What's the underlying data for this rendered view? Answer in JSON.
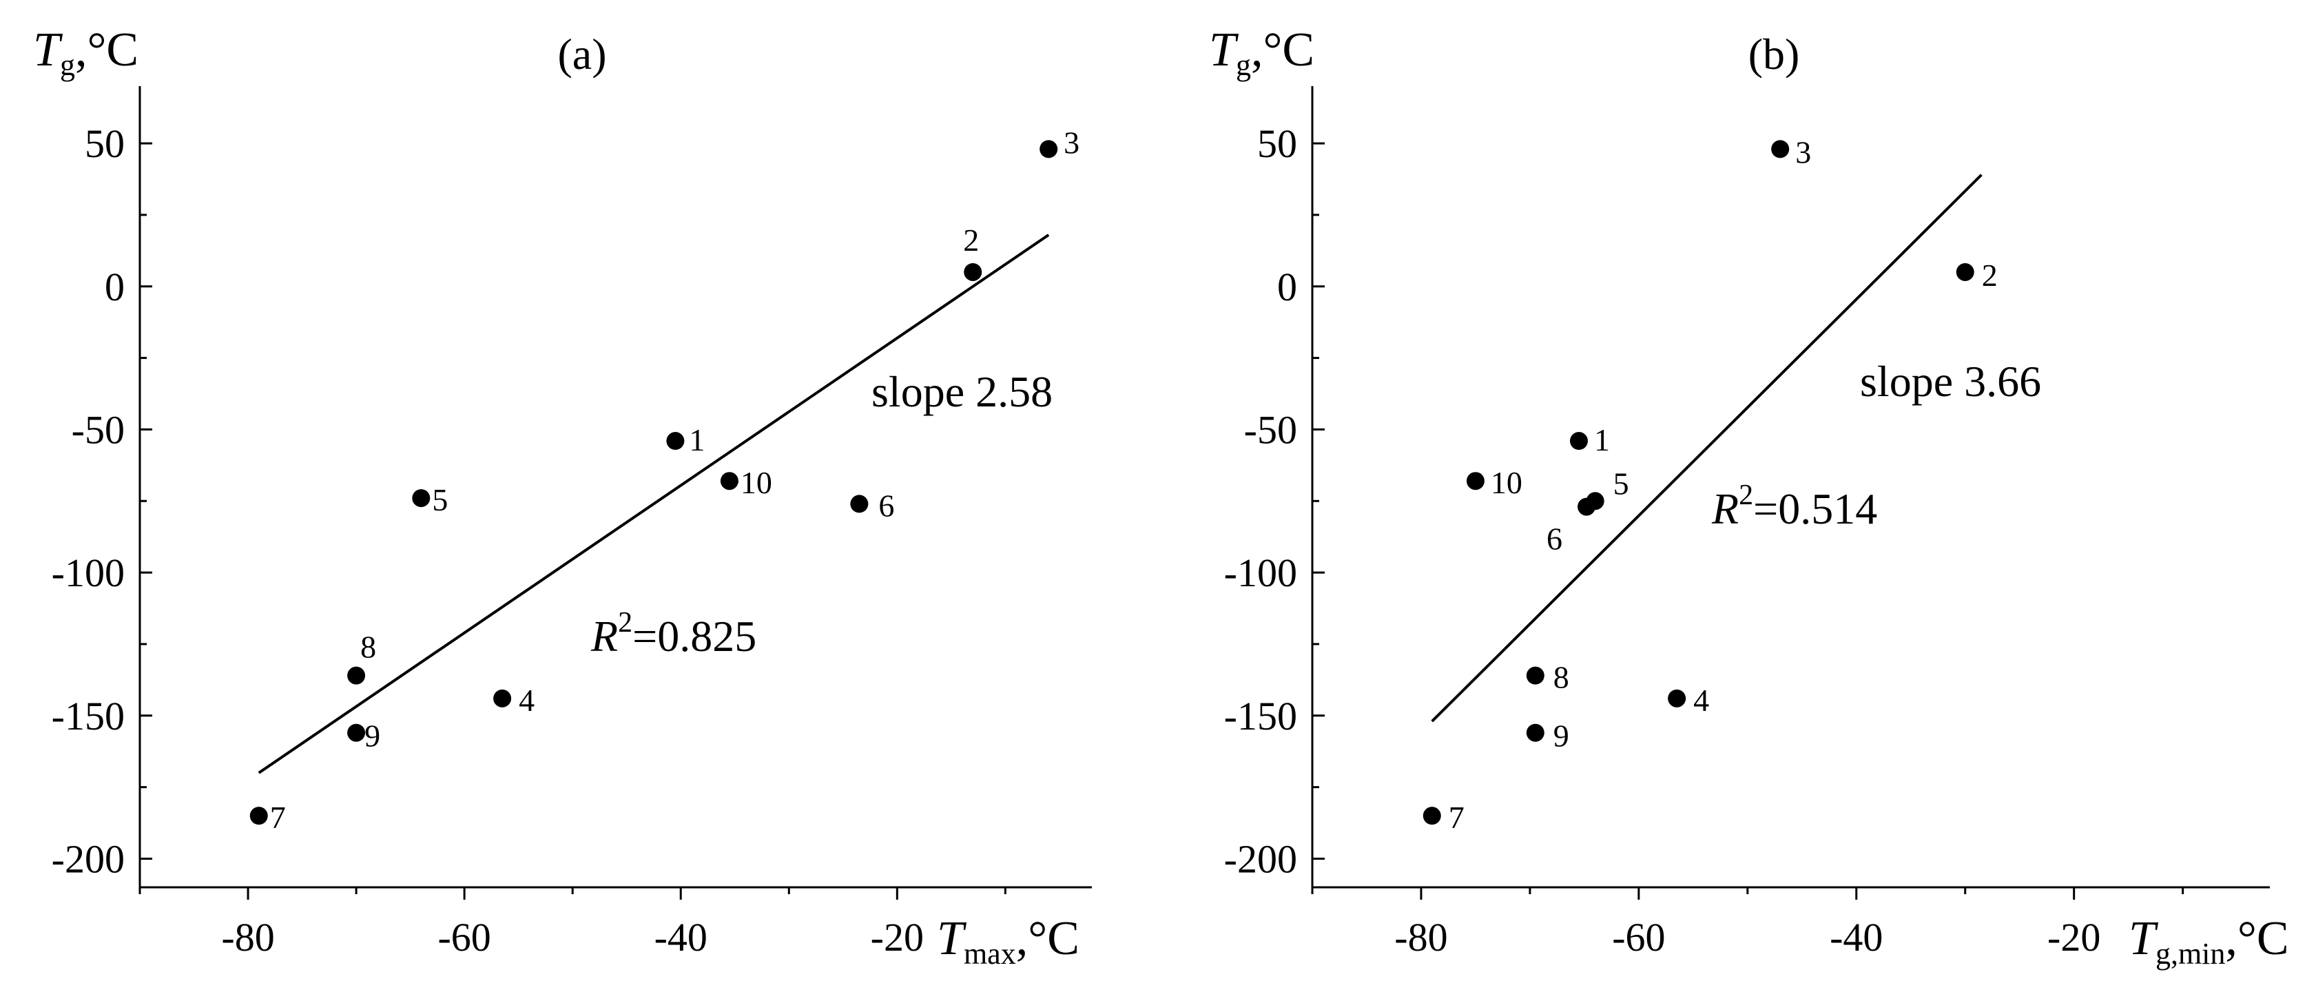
{
  "chart_data": [
    {
      "type": "scatter",
      "panel_label": "(a)",
      "ylabel_main": "T",
      "ylabel_sub": "g",
      "ylabel_unit": ",°C",
      "xlabel_main": "T",
      "xlabel_sub": "max",
      "xlabel_unit": ",°C",
      "xlim": [
        -90,
        -2
      ],
      "ylim": [
        -210,
        70
      ],
      "xticks": [
        -80,
        -60,
        -40,
        -20
      ],
      "xtick_labels": [
        "-80",
        "-60",
        "-40",
        "-20"
      ],
      "yticks": [
        50,
        0,
        -50,
        -100,
        -150,
        -200
      ],
      "ytick_labels": [
        "50",
        "0",
        "-50",
        "-100",
        "-150",
        "-200"
      ],
      "points": [
        {
          "label": "1",
          "x": -40.5,
          "y": -54
        },
        {
          "label": "2",
          "x": -13,
          "y": 5
        },
        {
          "label": "3",
          "x": -6,
          "y": 48
        },
        {
          "label": "4",
          "x": -56.5,
          "y": -144
        },
        {
          "label": "5",
          "x": -64,
          "y": -74
        },
        {
          "label": "6",
          "x": -23.5,
          "y": -76
        },
        {
          "label": "7",
          "x": -79,
          "y": -185
        },
        {
          "label": "8",
          "x": -70,
          "y": -136
        },
        {
          "label": "9",
          "x": -70,
          "y": -156
        },
        {
          "label": "10",
          "x": -35.5,
          "y": -68
        }
      ],
      "fit_line": {
        "x": [
          -79,
          -6
        ],
        "y": [
          -170,
          18
        ]
      },
      "slope_text": "slope 2.58",
      "r2_main": "R",
      "r2_sup": "2",
      "r2_value": "=0.825"
    },
    {
      "type": "scatter",
      "panel_label": "(b)",
      "ylabel_main": "T",
      "ylabel_sub": "g",
      "ylabel_unit": ",°C",
      "xlabel_main": "T",
      "xlabel_sub": "g,min",
      "xlabel_unit": ",°C",
      "xlim": [
        -90,
        -2
      ],
      "ylim": [
        -210,
        70
      ],
      "xticks": [
        -80,
        -60,
        -40,
        -20
      ],
      "xtick_labels": [
        "-80",
        "-60",
        "-40",
        "-20"
      ],
      "yticks": [
        50,
        0,
        -50,
        -100,
        -150,
        -200
      ],
      "ytick_labels": [
        "50",
        "0",
        "-50",
        "-100",
        "-150",
        "-200"
      ],
      "points": [
        {
          "label": "1",
          "x": -65.5,
          "y": -54
        },
        {
          "label": "2",
          "x": -30,
          "y": 5
        },
        {
          "label": "3",
          "x": -47,
          "y": 48
        },
        {
          "label": "4",
          "x": -56.5,
          "y": -144
        },
        {
          "label": "5",
          "x": -64,
          "y": -75
        },
        {
          "label": "6",
          "x": -64.8,
          "y": -77
        },
        {
          "label": "7",
          "x": -79,
          "y": -185
        },
        {
          "label": "8",
          "x": -69.5,
          "y": -136
        },
        {
          "label": "9",
          "x": -69.5,
          "y": -156
        },
        {
          "label": "10",
          "x": -75,
          "y": -68
        }
      ],
      "fit_line": {
        "x": [
          -79,
          -28.5
        ],
        "y": [
          -152,
          39
        ]
      },
      "slope_text": "slope 3.66",
      "r2_main": "R",
      "r2_sup": "2",
      "r2_value": "=0.514"
    }
  ]
}
